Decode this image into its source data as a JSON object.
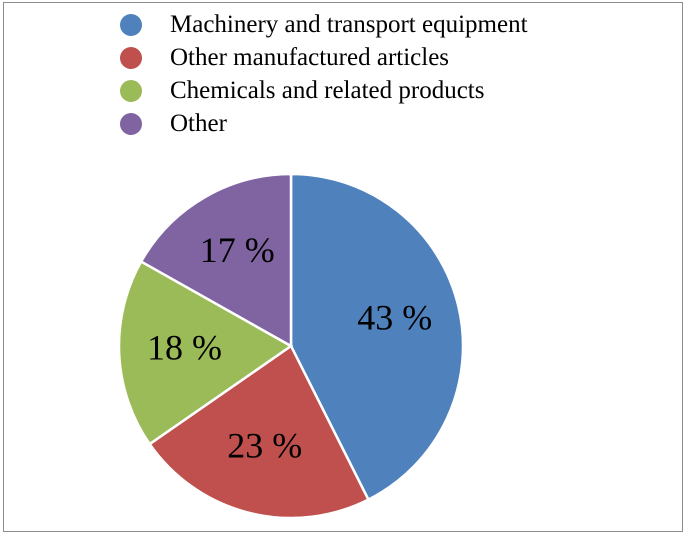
{
  "chart_data": {
    "type": "pie",
    "categories": [
      "Machinery and transport equipment",
      "Other manufactured articles",
      "Chemicals and related products",
      "Other"
    ],
    "values": [
      43,
      23,
      18,
      17
    ],
    "data_labels": [
      "43 %",
      "23 %",
      "18 %",
      "17 %"
    ],
    "colors": [
      "#4f81bd",
      "#c0504d",
      "#9bbb59",
      "#8064a2"
    ],
    "legend_position": "top",
    "start_angle": "12 o'clock",
    "direction": "clockwise"
  }
}
